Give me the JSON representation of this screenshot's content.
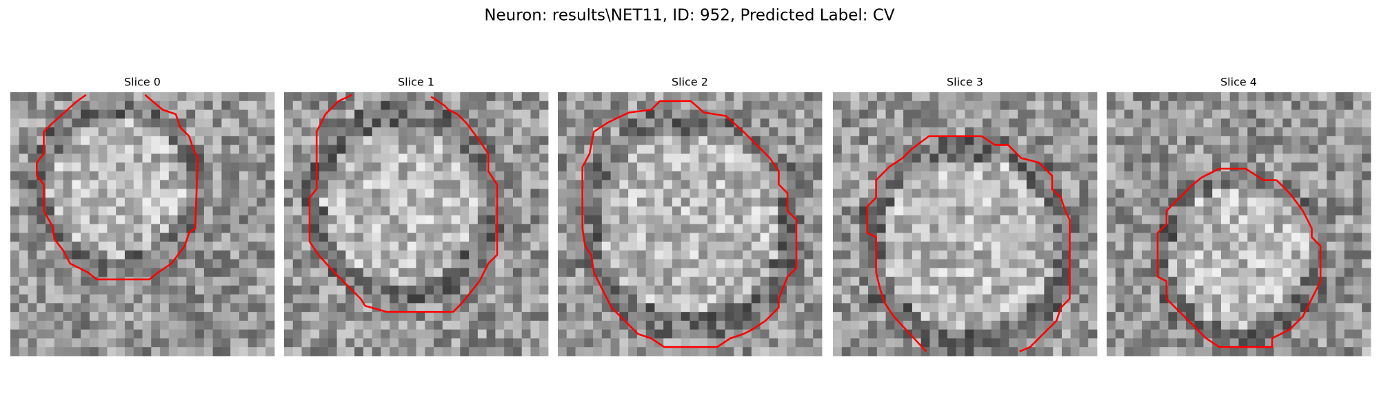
{
  "title": "Neuron: results\\NET11, ID: 952, Predicted Label: CV",
  "panels": [
    {
      "title": "Slice 0"
    },
    {
      "title": "Slice 1"
    },
    {
      "title": "Slice 2"
    },
    {
      "title": "Slice 3"
    },
    {
      "title": "Slice 4"
    }
  ]
}
